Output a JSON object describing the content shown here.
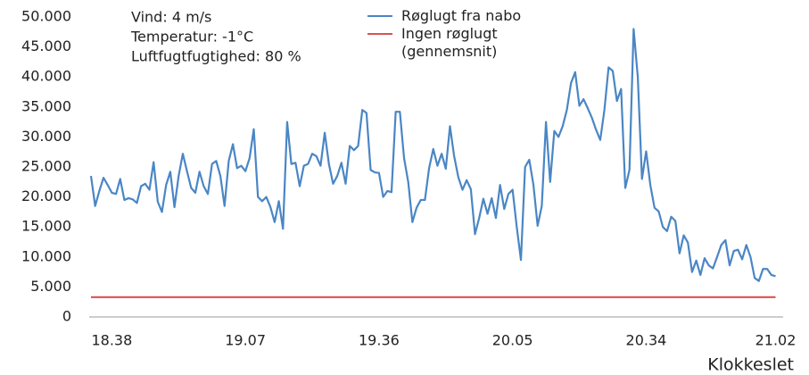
{
  "chart_data": {
    "type": "line",
    "annotations": [
      "Vind: 4 m/s",
      "Temperatur: -1°C",
      "Luftfugtfugtighed: 80 %"
    ],
    "x_label": "Klokkeslet",
    "categories": [
      null,
      null,
      null,
      null,
      null,
      "18.38",
      null,
      null,
      null,
      null,
      null,
      null,
      null,
      null,
      null,
      null,
      null,
      null,
      null,
      null,
      null,
      null,
      null,
      null,
      null,
      null,
      null,
      null,
      null,
      null,
      null,
      null,
      null,
      null,
      null,
      null,
      null,
      "19.07",
      null,
      null,
      null,
      null,
      null,
      null,
      null,
      null,
      null,
      null,
      null,
      null,
      null,
      null,
      null,
      null,
      null,
      null,
      null,
      null,
      null,
      null,
      null,
      null,
      null,
      null,
      null,
      null,
      null,
      null,
      null,
      "19.36",
      null,
      null,
      null,
      null,
      null,
      null,
      null,
      null,
      null,
      null,
      null,
      null,
      null,
      null,
      null,
      null,
      null,
      null,
      null,
      null,
      null,
      null,
      null,
      null,
      null,
      null,
      null,
      null,
      null,
      null,
      null,
      "20.05",
      null,
      null,
      null,
      null,
      null,
      null,
      null,
      null,
      null,
      null,
      null,
      null,
      null,
      null,
      null,
      null,
      null,
      null,
      null,
      null,
      null,
      null,
      null,
      null,
      null,
      null,
      null,
      null,
      null,
      null,
      null,
      "20.34",
      null,
      null,
      null,
      null,
      null,
      null,
      null,
      null,
      null,
      null,
      null,
      null,
      null,
      null,
      null,
      null,
      null,
      null,
      null,
      null,
      null,
      null,
      null,
      null,
      null,
      null,
      null,
      null,
      null,
      null,
      "21.02"
    ],
    "series": [
      {
        "name": "Røglugt fra nabo",
        "color": "#4a86c5",
        "values": [
          23500,
          18500,
          21000,
          23200,
          22000,
          20700,
          20500,
          23000,
          19500,
          19800,
          19600,
          19000,
          21800,
          22200,
          21200,
          25800,
          19200,
          17500,
          22000,
          24200,
          18300,
          23500,
          27200,
          24300,
          21500,
          20700,
          24200,
          21800,
          20500,
          25500,
          26000,
          23500,
          18500,
          26000,
          28800,
          24800,
          25200,
          24300,
          26500,
          31300,
          20000,
          19300,
          20000,
          18300,
          15800,
          19300,
          14700,
          32500,
          25500,
          25700,
          21800,
          25200,
          25500,
          27200,
          26800,
          25200,
          30700,
          25500,
          22200,
          23500,
          25700,
          22200,
          28500,
          27800,
          28500,
          34500,
          34000,
          24500,
          24100,
          24000,
          20000,
          21000,
          20800,
          34200,
          34200,
          26500,
          22500,
          15800,
          18200,
          19500,
          19500,
          24800,
          28000,
          25200,
          27200,
          24700,
          31800,
          26800,
          23300,
          21200,
          22800,
          21300,
          13800,
          16500,
          19700,
          17200,
          19800,
          16500,
          22000,
          18000,
          20500,
          21200,
          15000,
          9500,
          25000,
          26200,
          22000,
          15200,
          18500,
          32500,
          22500,
          31000,
          30000,
          31800,
          34500,
          39000,
          40800,
          35200,
          36300,
          34800,
          33200,
          31200,
          29500,
          34500,
          41600,
          41000,
          36000,
          38000,
          21500,
          24500,
          48000,
          40000,
          23000,
          27600,
          22000,
          18200,
          17600,
          15000,
          14300,
          16700,
          16000,
          10600,
          13600,
          12400,
          7500,
          9400,
          7000,
          9800,
          8600,
          8100,
          10000,
          12000,
          12800,
          8600,
          11000,
          11200,
          9600,
          12000,
          10000,
          6500,
          6000,
          8000,
          8000,
          7000,
          6800
        ]
      },
      {
        "name": "Ingen røglugt (gennemsnit)",
        "color": "#d9534f",
        "values": [
          3300,
          3300,
          3300,
          3300,
          3300,
          3300,
          3300,
          3300,
          3300,
          3300,
          3300,
          3300,
          3300,
          3300,
          3300,
          3300,
          3300,
          3300,
          3300,
          3300,
          3300,
          3300,
          3300,
          3300,
          3300,
          3300,
          3300,
          3300,
          3300,
          3300,
          3300,
          3300,
          3300,
          3300,
          3300,
          3300,
          3300,
          3300,
          3300,
          3300,
          3300,
          3300,
          3300,
          3300,
          3300,
          3300,
          3300,
          3300,
          3300,
          3300,
          3300,
          3300,
          3300,
          3300,
          3300,
          3300,
          3300,
          3300,
          3300,
          3300,
          3300,
          3300,
          3300,
          3300,
          3300,
          3300,
          3300,
          3300,
          3300,
          3300,
          3300,
          3300,
          3300,
          3300,
          3300,
          3300,
          3300,
          3300,
          3300,
          3300,
          3300,
          3300,
          3300,
          3300,
          3300,
          3300,
          3300,
          3300,
          3300,
          3300,
          3300,
          3300,
          3300,
          3300,
          3300,
          3300,
          3300,
          3300,
          3300,
          3300,
          3300,
          3300,
          3300,
          3300,
          3300,
          3300,
          3300,
          3300,
          3300,
          3300,
          3300,
          3300,
          3300,
          3300,
          3300,
          3300,
          3300,
          3300,
          3300,
          3300,
          3300,
          3300,
          3300,
          3300,
          3300,
          3300,
          3300,
          3300,
          3300,
          3300,
          3300,
          3300,
          3300,
          3300,
          3300,
          3300,
          3300,
          3300,
          3300,
          3300,
          3300,
          3300,
          3300,
          3300,
          3300,
          3300,
          3300,
          3300,
          3300,
          3300,
          3300,
          3300,
          3300,
          3300,
          3300,
          3300,
          3300,
          3300,
          3300,
          3300,
          3300,
          3300,
          3300,
          3300,
          3300
        ]
      }
    ],
    "ylim": [
      0,
      50000
    ],
    "yticks": [
      0,
      {
        "value": 5000,
        "label": "5.000"
      },
      {
        "value": 10000,
        "label": "10.000"
      },
      {
        "value": 15000,
        "label": "15.000"
      },
      {
        "value": 20000,
        "label": "20.000"
      },
      {
        "value": 25000,
        "label": "25.000"
      },
      {
        "value": 30000,
        "label": "30.000"
      },
      {
        "value": 35000,
        "label": "35.000"
      },
      {
        "value": 40000,
        "label": "40.000"
      },
      {
        "value": 45000,
        "label": "45.000"
      },
      {
        "value": 50000,
        "label": "50.000"
      }
    ],
    "grid": false
  }
}
